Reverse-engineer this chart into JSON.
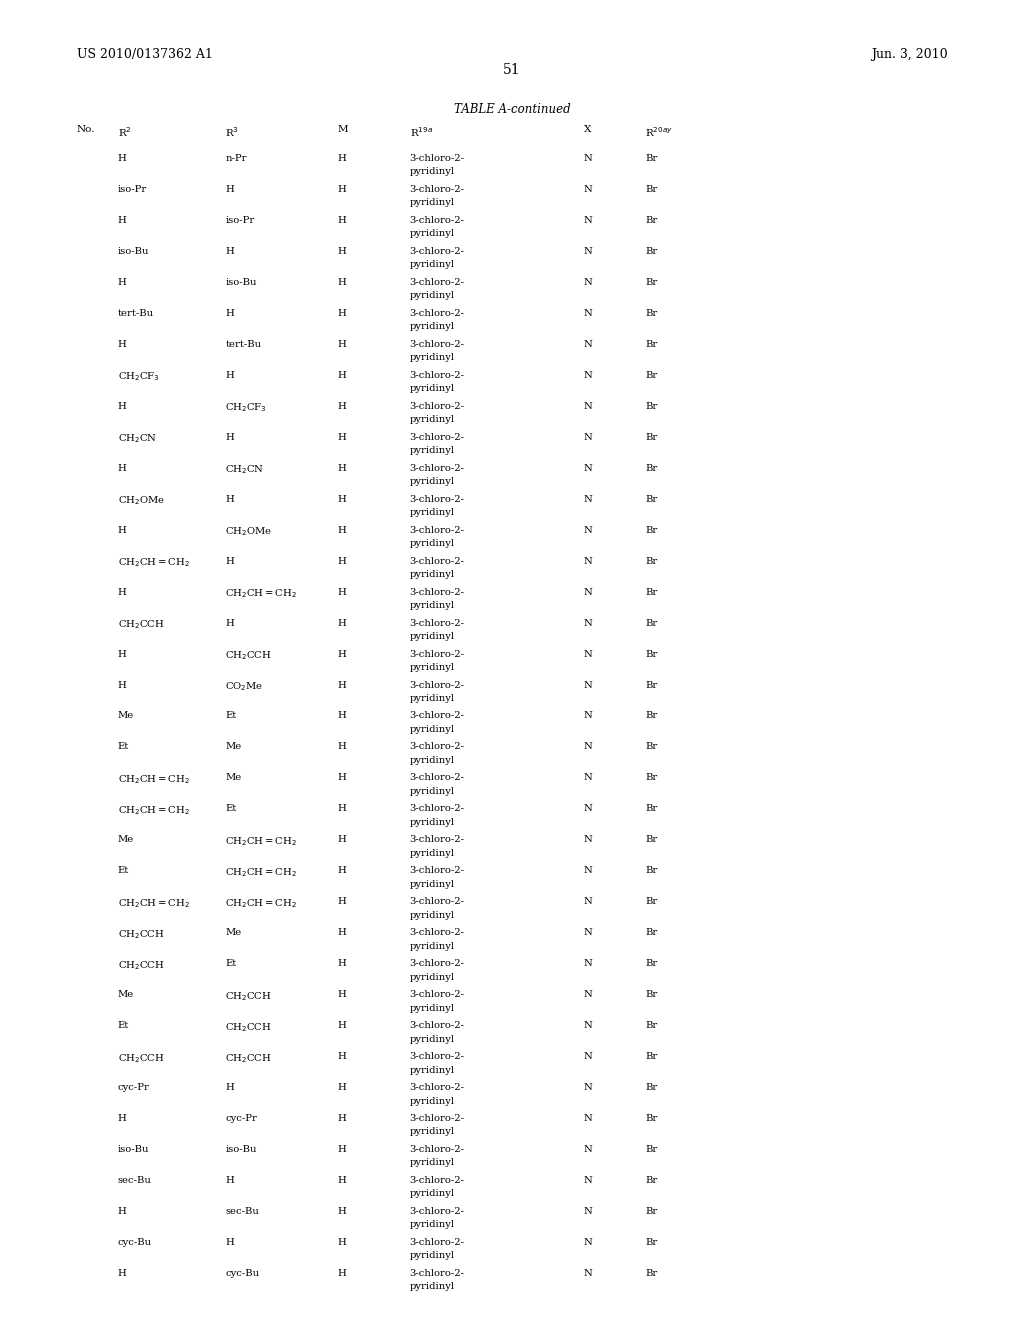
{
  "header_left": "US 2010/0137362 A1",
  "header_right": "Jun. 3, 2010",
  "page_number": "51",
  "table_title": "TABLE A-continued",
  "rows": [
    [
      "",
      "H",
      "n-Pr",
      "H",
      "3-chloro-2-\npyridinyl",
      "N",
      "Br"
    ],
    [
      "",
      "iso-Pr",
      "H",
      "H",
      "3-chloro-2-\npyridinyl",
      "N",
      "Br"
    ],
    [
      "",
      "H",
      "iso-Pr",
      "H",
      "3-chloro-2-\npyridinyl",
      "N",
      "Br"
    ],
    [
      "",
      "iso-Bu",
      "H",
      "H",
      "3-chloro-2-\npyridinyl",
      "N",
      "Br"
    ],
    [
      "",
      "H",
      "iso-Bu",
      "H",
      "3-chloro-2-\npyridinyl",
      "N",
      "Br"
    ],
    [
      "",
      "tert-Bu",
      "H",
      "H",
      "3-chloro-2-\npyridinyl",
      "N",
      "Br"
    ],
    [
      "",
      "H",
      "tert-Bu",
      "H",
      "3-chloro-2-\npyridinyl",
      "N",
      "Br"
    ],
    [
      "",
      "CH$_2$CF$_3$",
      "H",
      "H",
      "3-chloro-2-\npyridinyl",
      "N",
      "Br"
    ],
    [
      "",
      "H",
      "CH$_2$CF$_3$",
      "H",
      "3-chloro-2-\npyridinyl",
      "N",
      "Br"
    ],
    [
      "",
      "CH$_2$CN",
      "H",
      "H",
      "3-chloro-2-\npyridinyl",
      "N",
      "Br"
    ],
    [
      "",
      "H",
      "CH$_2$CN",
      "H",
      "3-chloro-2-\npyridinyl",
      "N",
      "Br"
    ],
    [
      "",
      "CH$_2$OMe",
      "H",
      "H",
      "3-chloro-2-\npyridinyl",
      "N",
      "Br"
    ],
    [
      "",
      "H",
      "CH$_2$OMe",
      "H",
      "3-chloro-2-\npyridinyl",
      "N",
      "Br"
    ],
    [
      "",
      "CH$_2$CH$=$CH$_2$",
      "H",
      "H",
      "3-chloro-2-\npyridinyl",
      "N",
      "Br"
    ],
    [
      "",
      "H",
      "CH$_2$CH$=$CH$_2$",
      "H",
      "3-chloro-2-\npyridinyl",
      "N",
      "Br"
    ],
    [
      "",
      "CH$_2$CCH",
      "H",
      "H",
      "3-chloro-2-\npyridinyl",
      "N",
      "Br"
    ],
    [
      "",
      "H",
      "CH$_2$CCH",
      "H",
      "3-chloro-2-\npyridinyl",
      "N",
      "Br"
    ],
    [
      "",
      "H",
      "CO$_2$Me",
      "H",
      "3-chloro-2-\npyridinyl",
      "N",
      "Br"
    ],
    [
      "",
      "Me",
      "Et",
      "H",
      "3-chloro-2-\npyridinyl",
      "N",
      "Br"
    ],
    [
      "",
      "Et",
      "Me",
      "H",
      "3-chloro-2-\npyridinyl",
      "N",
      "Br"
    ],
    [
      "",
      "CH$_2$CH$=$CH$_2$",
      "Me",
      "H",
      "3-chloro-2-\npyridinyl",
      "N",
      "Br"
    ],
    [
      "",
      "CH$_2$CH$=$CH$_2$",
      "Et",
      "H",
      "3-chloro-2-\npyridinyl",
      "N",
      "Br"
    ],
    [
      "",
      "Me",
      "CH$_2$CH$=$CH$_2$",
      "H",
      "3-chloro-2-\npyridinyl",
      "N",
      "Br"
    ],
    [
      "",
      "Et",
      "CH$_2$CH$=$CH$_2$",
      "H",
      "3-chloro-2-\npyridinyl",
      "N",
      "Br"
    ],
    [
      "",
      "CH$_2$CH$=$CH$_2$",
      "CH$_2$CH$=$CH$_2$",
      "H",
      "3-chloro-2-\npyridinyl",
      "N",
      "Br"
    ],
    [
      "",
      "CH$_2$CCH",
      "Me",
      "H",
      "3-chloro-2-\npyridinyl",
      "N",
      "Br"
    ],
    [
      "",
      "CH$_2$CCH",
      "Et",
      "H",
      "3-chloro-2-\npyridinyl",
      "N",
      "Br"
    ],
    [
      "",
      "Me",
      "CH$_2$CCH",
      "H",
      "3-chloro-2-\npyridinyl",
      "N",
      "Br"
    ],
    [
      "",
      "Et",
      "CH$_2$CCH",
      "H",
      "3-chloro-2-\npyridinyl",
      "N",
      "Br"
    ],
    [
      "",
      "CH$_2$CCH",
      "CH$_2$CCH",
      "H",
      "3-chloro-2-\npyridinyl",
      "N",
      "Br"
    ],
    [
      "",
      "cyc-Pr",
      "H",
      "H",
      "3-chloro-2-\npyridinyl",
      "N",
      "Br"
    ],
    [
      "",
      "H",
      "cyc-Pr",
      "H",
      "3-chloro-2-\npyridinyl",
      "N",
      "Br"
    ],
    [
      "",
      "iso-Bu",
      "iso-Bu",
      "H",
      "3-chloro-2-\npyridinyl",
      "N",
      "Br"
    ],
    [
      "",
      "sec-Bu",
      "H",
      "H",
      "3-chloro-2-\npyridinyl",
      "N",
      "Br"
    ],
    [
      "",
      "H",
      "sec-Bu",
      "H",
      "3-chloro-2-\npyridinyl",
      "N",
      "Br"
    ],
    [
      "",
      "cyc-Bu",
      "H",
      "H",
      "3-chloro-2-\npyridinyl",
      "N",
      "Br"
    ],
    [
      "",
      "H",
      "cyc-Bu",
      "H",
      "3-chloro-2-\npyridinyl",
      "N",
      "Br"
    ]
  ],
  "bg_color": "#ffffff",
  "text_color": "#000000",
  "font_size": 7.2,
  "header_font_size": 9.0,
  "page_num_font_size": 10.0,
  "title_font_size": 8.5,
  "col_header_font_size": 7.5
}
